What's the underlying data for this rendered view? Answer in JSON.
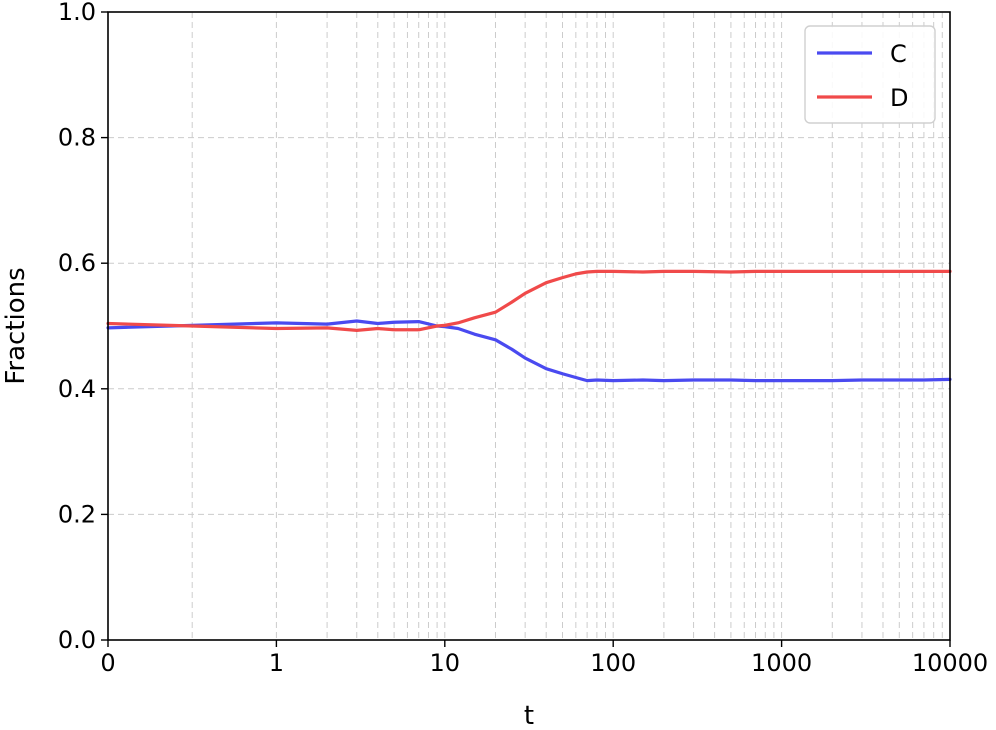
{
  "chart_data": {
    "type": "line",
    "title": "",
    "xlabel": "t",
    "ylabel": "Fractions",
    "x_scale": "symlog",
    "xlim": [
      0,
      10000
    ],
    "ylim": [
      0.0,
      1.0
    ],
    "x_ticks": [
      0,
      1,
      10,
      100,
      1000,
      10000
    ],
    "x_tick_labels": [
      "0",
      "1",
      "10",
      "100",
      "1000",
      "10000"
    ],
    "y_ticks": [
      0.0,
      0.2,
      0.4,
      0.6,
      0.8,
      1.0
    ],
    "y_tick_labels": [
      "0.0",
      "0.2",
      "0.4",
      "0.6",
      "0.8",
      "1.0"
    ],
    "grid": true,
    "legend_position": "top-right",
    "series": [
      {
        "name": "C",
        "color": "#4a4af0",
        "x": [
          0,
          0.5,
          1,
          2,
          3,
          4,
          5,
          7,
          9,
          10,
          12,
          15,
          20,
          25,
          30,
          40,
          50,
          60,
          70,
          80,
          100,
          150,
          200,
          300,
          500,
          700,
          1000,
          2000,
          3000,
          5000,
          7000,
          10000
        ],
        "y": [
          0.497,
          0.501,
          0.505,
          0.503,
          0.508,
          0.504,
          0.506,
          0.507,
          0.5,
          0.499,
          0.496,
          0.487,
          0.478,
          0.463,
          0.449,
          0.432,
          0.424,
          0.418,
          0.413,
          0.414,
          0.413,
          0.414,
          0.413,
          0.414,
          0.414,
          0.413,
          0.413,
          0.413,
          0.414,
          0.414,
          0.414,
          0.415
        ]
      },
      {
        "name": "D",
        "color": "#f04a4a",
        "x": [
          0,
          0.5,
          1,
          2,
          3,
          4,
          5,
          7,
          9,
          10,
          12,
          15,
          20,
          25,
          30,
          40,
          50,
          60,
          70,
          80,
          100,
          150,
          200,
          300,
          500,
          700,
          1000,
          2000,
          3000,
          5000,
          7000,
          10000
        ],
        "y": [
          0.504,
          0.5,
          0.496,
          0.497,
          0.493,
          0.496,
          0.494,
          0.494,
          0.5,
          0.501,
          0.505,
          0.513,
          0.522,
          0.538,
          0.552,
          0.569,
          0.577,
          0.583,
          0.586,
          0.587,
          0.587,
          0.586,
          0.587,
          0.587,
          0.586,
          0.587,
          0.587,
          0.587,
          0.587,
          0.587,
          0.587,
          0.587
        ]
      }
    ]
  }
}
